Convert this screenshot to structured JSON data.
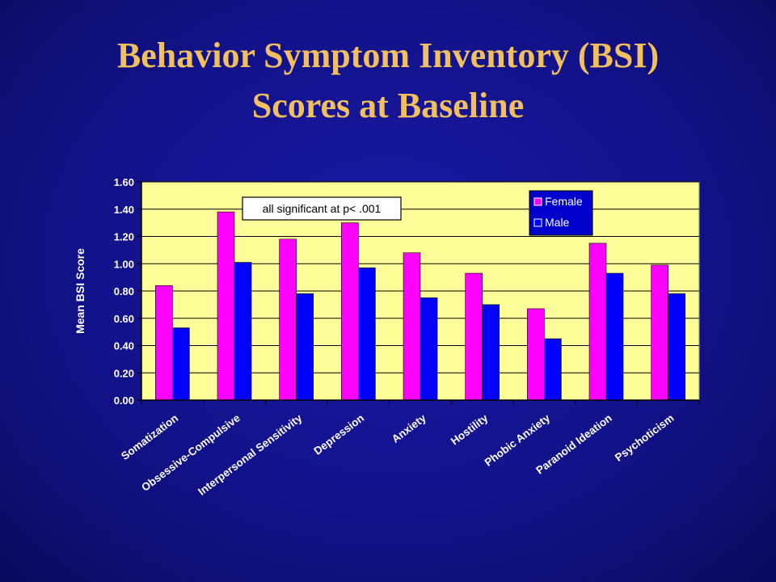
{
  "title": {
    "line1": "Behavior Symptom Inventory (BSI)",
    "line2": "Scores at Baseline"
  },
  "chart_data": {
    "type": "bar",
    "ylabel": "Mean BSI Score",
    "ylim": [
      0,
      1.6
    ],
    "yticks": [
      "0.00",
      "0.20",
      "0.40",
      "0.60",
      "0.80",
      "1.00",
      "1.20",
      "1.40",
      "1.60"
    ],
    "categories": [
      "Somatization",
      "Obsessive-Compulsive",
      "Interpersonal Sensitivity",
      "Depression",
      "Anxiety",
      "Hostility",
      "Phobic Anxiety",
      "Paranoid Ideation",
      "Psychoticism"
    ],
    "series": [
      {
        "name": "Female",
        "color": "#ff00ff",
        "values": [
          0.84,
          1.38,
          1.18,
          1.3,
          1.08,
          0.93,
          0.67,
          1.15,
          0.99
        ]
      },
      {
        "name": "Male",
        "color": "#0000ff",
        "values": [
          0.53,
          1.01,
          0.78,
          0.97,
          0.75,
          0.7,
          0.45,
          0.93,
          0.78
        ]
      }
    ],
    "annotation": "all significant at p< .001",
    "legend_position": "top-right",
    "plot_background": "#ffff99",
    "grid": true
  }
}
